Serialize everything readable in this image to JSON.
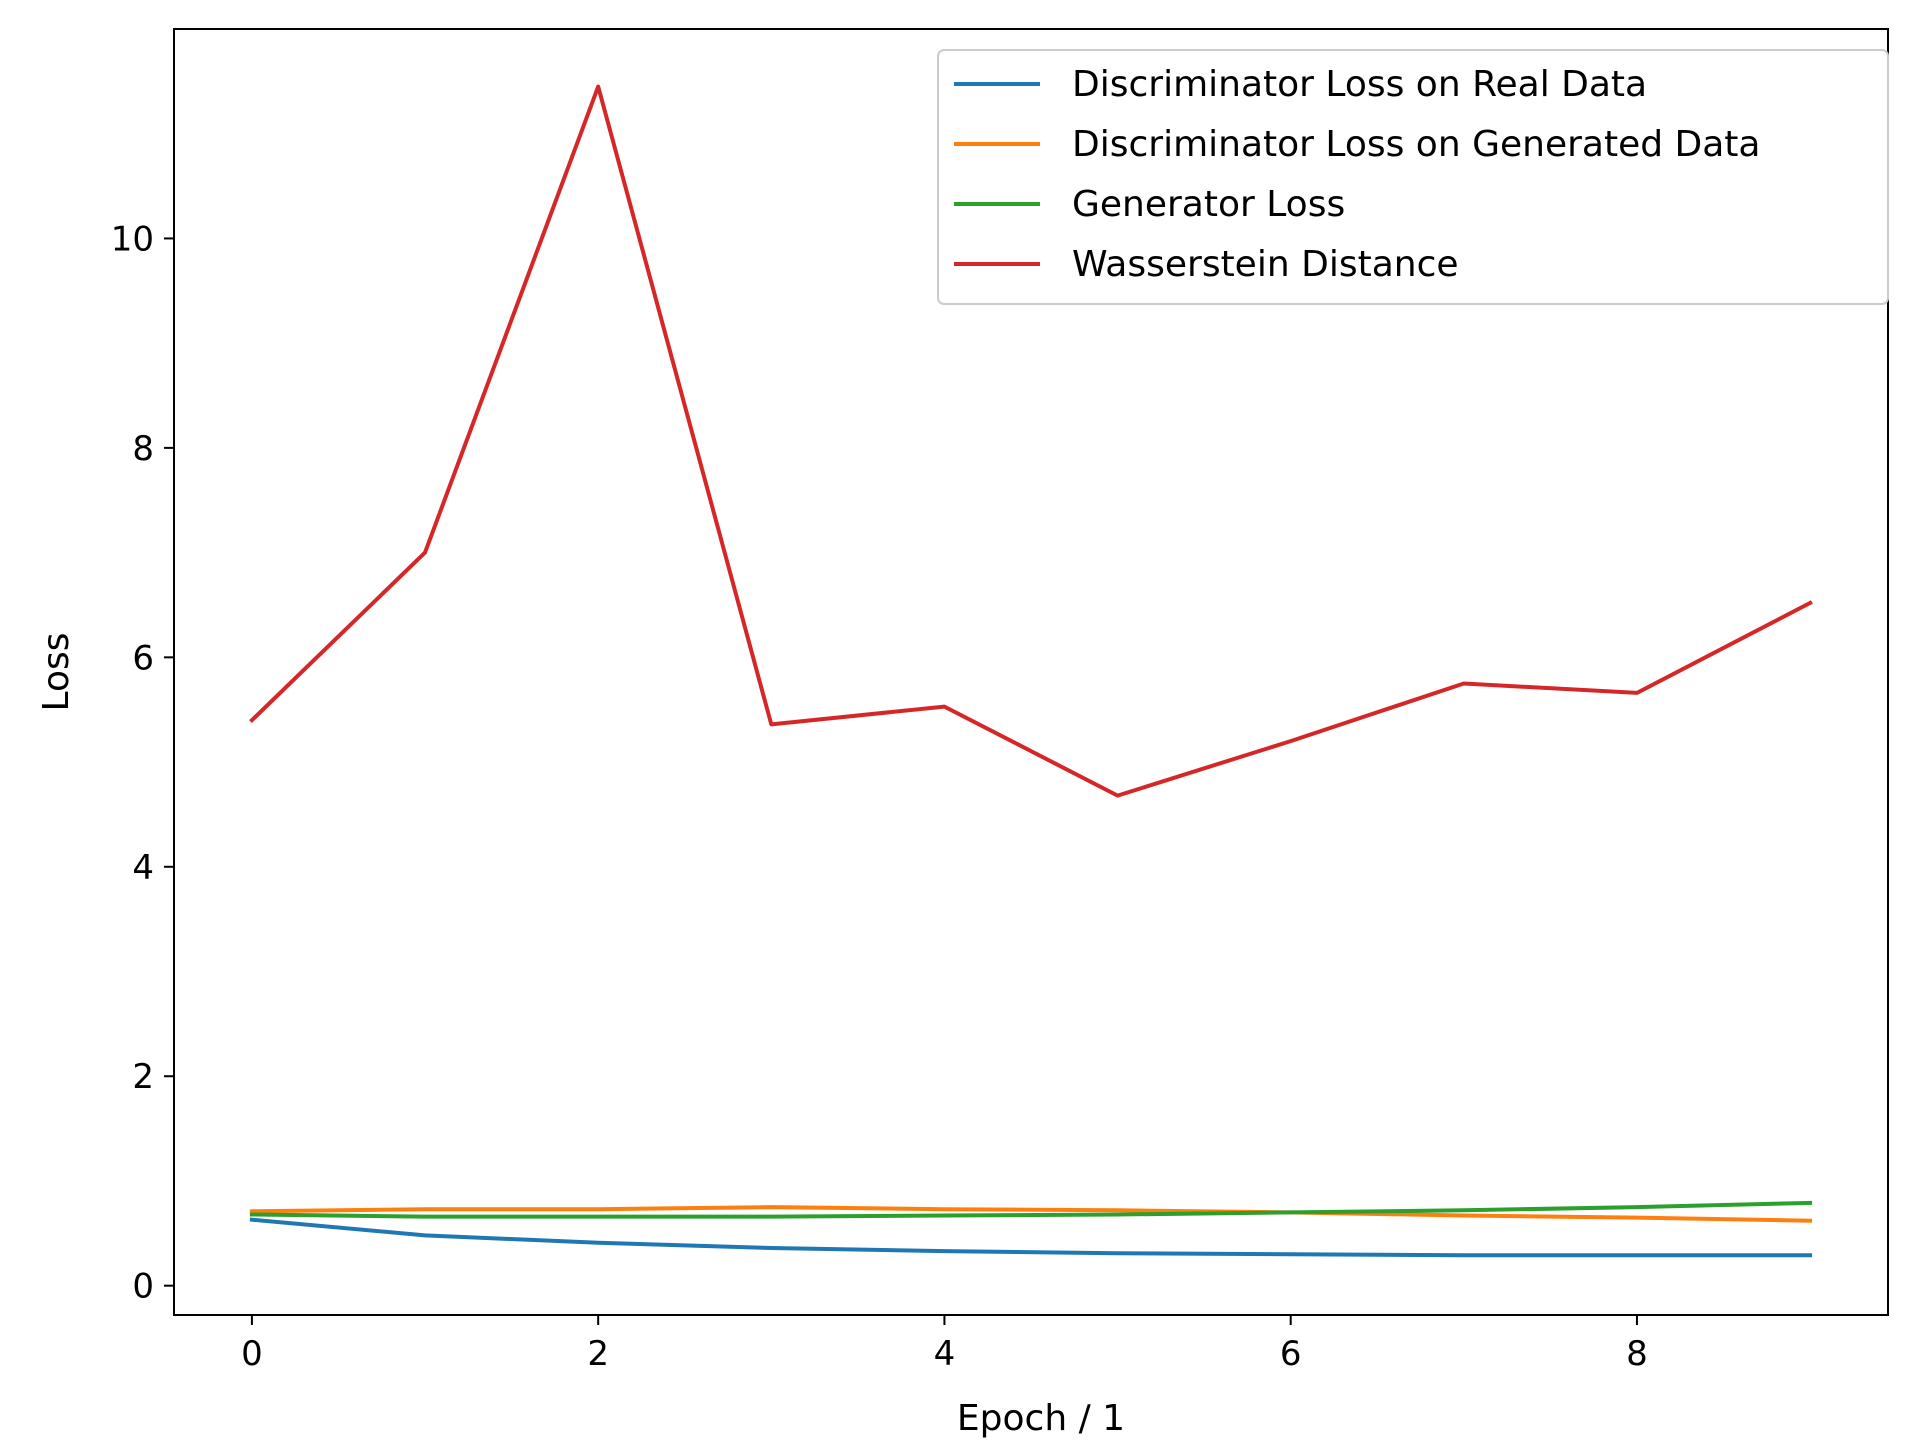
{
  "chart_data": {
    "type": "line",
    "title": "",
    "xlabel": "Epoch / 1",
    "ylabel": "Loss",
    "x": [
      0,
      1,
      2,
      3,
      4,
      5,
      6,
      7,
      8,
      9
    ],
    "xlim": [
      -0.45,
      9.45
    ],
    "ylim": [
      -0.28,
      12.0
    ],
    "xticks": [
      0,
      2,
      4,
      6,
      8
    ],
    "yticks": [
      0,
      2,
      4,
      6,
      8,
      10
    ],
    "grid": false,
    "legend_position": "top-right",
    "series": [
      {
        "name": "Discriminator Loss on Real Data",
        "color": "#1f77b4",
        "values": [
          0.63,
          0.48,
          0.41,
          0.36,
          0.33,
          0.31,
          0.3,
          0.29,
          0.29,
          0.29
        ]
      },
      {
        "name": "Discriminator Loss on Generated Data",
        "color": "#ff7f0e",
        "values": [
          0.71,
          0.73,
          0.73,
          0.75,
          0.73,
          0.72,
          0.7,
          0.67,
          0.65,
          0.62
        ]
      },
      {
        "name": "Generator Loss",
        "color": "#2ca02c",
        "values": [
          0.68,
          0.66,
          0.66,
          0.66,
          0.67,
          0.68,
          0.7,
          0.72,
          0.75,
          0.79
        ]
      },
      {
        "name": "Wasserstein Distance",
        "color": "#d62728",
        "values": [
          5.4,
          7.0,
          11.45,
          5.36,
          5.53,
          4.68,
          5.2,
          5.75,
          5.66,
          6.52
        ]
      }
    ]
  }
}
